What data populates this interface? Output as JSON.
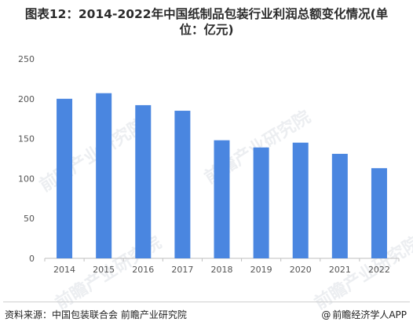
{
  "title_line1": "图表12：2014-2022年中国纸制品包装行业利润总额变化情况(单",
  "title_line2": "位：亿元)",
  "source": "资料来源：中国包装联合会 前瞻产业研究院",
  "brand": "前瞻经济学人APP",
  "brand_icon": "at-sign-icon",
  "watermark": "前瞻产业研究院",
  "colors": {
    "bar": "#4a86e0",
    "axis": "#bfbfbf",
    "tick_text": "#555555"
  },
  "chart_data": {
    "type": "bar",
    "categories": [
      "2014",
      "2015",
      "2016",
      "2017",
      "2018",
      "2019",
      "2020",
      "2021",
      "2022"
    ],
    "values": [
      200,
      207,
      192,
      185,
      148,
      139,
      145,
      131,
      113
    ],
    "ylim": [
      0,
      250
    ],
    "yticks": [
      0,
      50,
      100,
      150,
      200,
      250
    ],
    "xlabel": "",
    "ylabel": "",
    "grid": false
  }
}
